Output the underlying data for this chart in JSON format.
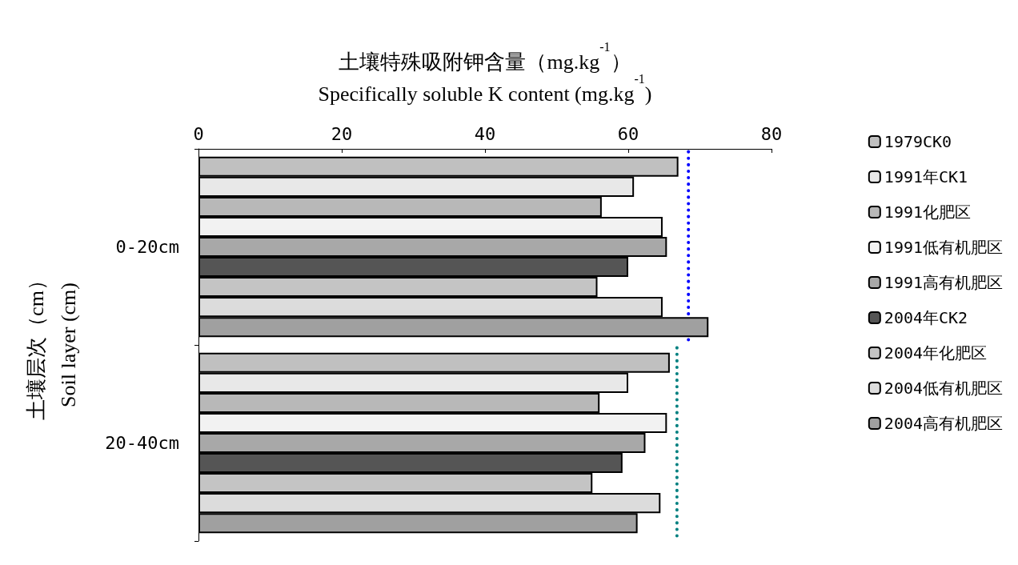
{
  "chart_data": {
    "type": "bar",
    "orientation": "horizontal",
    "xlabel": "土壤特殊吸附钾含量（mg.kg$^{-1}$）\nSpecifically soluble K content (mg.kg$^{-1}$)",
    "ylabel": "土壤层次（cm）\nSoil layer (cm)",
    "categories": [
      "0-20cm",
      "20-40cm"
    ],
    "xlim": [
      0,
      80
    ],
    "xticks": [
      0,
      20,
      40,
      60,
      80
    ],
    "grid": false,
    "legend": "right",
    "series": [
      {
        "name": "1979CK0",
        "color": "#c0c0c0",
        "values": [
          67.0,
          65.8
        ]
      },
      {
        "name": "1991年CK1",
        "color": "#e8e8e8",
        "values": [
          60.8,
          60.0
        ]
      },
      {
        "name": "1991化肥区",
        "color": "#b8b8b8",
        "values": [
          56.3,
          56.0
        ]
      },
      {
        "name": "1991低有机肥区",
        "color": "#f2f2f2",
        "values": [
          64.8,
          65.4
        ]
      },
      {
        "name": "1991高有机肥区",
        "color": "#a8a8a8",
        "values": [
          65.4,
          62.4
        ]
      },
      {
        "name": "2004年CK2",
        "color": "#555555",
        "values": [
          60.0,
          59.2
        ]
      },
      {
        "name": "2004年化肥区",
        "color": "#c4c4c4",
        "values": [
          55.7,
          55.0
        ]
      },
      {
        "name": "2004低有机肥区",
        "color": "#dcdcdc",
        "values": [
          64.8,
          64.5
        ]
      },
      {
        "name": "2004高有机肥区",
        "color": "#a0a0a0",
        "values": [
          71.2,
          61.3
        ]
      }
    ],
    "ref_lines": [
      {
        "axis": "x",
        "value": 68.4,
        "color": "#0000ff",
        "line_style": "dotted"
      },
      {
        "axis": "x",
        "value": 66.8,
        "color": "#008080",
        "line_style": "dotted"
      }
    ]
  }
}
